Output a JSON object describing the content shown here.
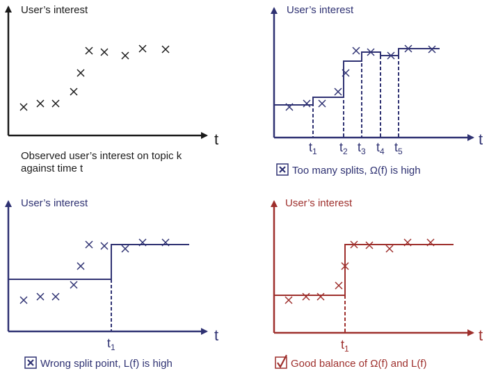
{
  "colors": {
    "black": "#1a1a1a",
    "navy": "#2e3172",
    "red": "#9e2f2c"
  },
  "panels": [
    {
      "id": "observed",
      "ylabel": "User’s interest",
      "xlabel": "t",
      "caption_lines": [
        "Observed user’s interest on topic k",
        "against time t"
      ]
    },
    {
      "id": "too-many-splits",
      "ylabel": "User’s interest",
      "xlabel": "t",
      "split_labels": [
        "t",
        "t",
        "t",
        "t",
        "t"
      ],
      "split_subs": [
        "1",
        "2",
        "3",
        "4",
        "5"
      ],
      "caption": "Too many splits, Ω(f) is high",
      "caption_icon": "cross-box-icon"
    },
    {
      "id": "wrong-split",
      "ylabel": "User’s interest",
      "xlabel": "t",
      "split_labels": [
        "t"
      ],
      "split_subs": [
        "1"
      ],
      "caption": "Wrong split point, L(f) is high",
      "caption_icon": "cross-box-icon"
    },
    {
      "id": "good-balance",
      "ylabel": "User’s interest",
      "xlabel": "t",
      "split_labels": [
        "t"
      ],
      "split_subs": [
        "1"
      ],
      "caption": "Good balance of Ω(f) and L(f)",
      "caption_icon": "check-box-icon"
    }
  ]
}
